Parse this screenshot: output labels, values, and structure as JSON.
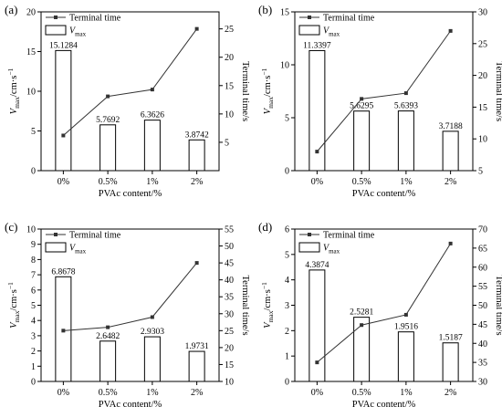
{
  "chart_data": [
    {
      "type": "bar",
      "panel_label": "(a)",
      "categories": [
        "0%",
        "0.5%",
        "1%",
        "2%"
      ],
      "xlabel": "PVAc content/%",
      "ylabel_left": {
        "main": "V",
        "sub": "max",
        "unit": "/cm·s",
        "sup": "−1"
      },
      "ylabel_right": "Terminal time/s",
      "left_ylim": [
        0,
        20
      ],
      "left_ticks": [
        0,
        5,
        10,
        15,
        20
      ],
      "right_ylim": [
        0,
        28
      ],
      "right_ticks": [
        5,
        10,
        15,
        20,
        25
      ],
      "legend": {
        "line": "Terminal time",
        "bar_main": "V",
        "bar_sub": "max"
      },
      "series": [
        {
          "name": "Vmax",
          "kind": "bar",
          "values": [
            15.1284,
            5.7692,
            6.3626,
            3.8742
          ],
          "labels": [
            "15.1284",
            "5.7692",
            "6.3626",
            "3.8742"
          ]
        },
        {
          "name": "Terminal time",
          "kind": "line",
          "values": [
            6.2,
            13.1,
            14.3,
            25.0
          ]
        }
      ]
    },
    {
      "type": "bar",
      "panel_label": "(b)",
      "categories": [
        "0%",
        "0.5%",
        "1%",
        "2%"
      ],
      "xlabel": "PVAc content/%",
      "ylabel_left": {
        "main": "V",
        "sub": "max",
        "unit": "/cm·s",
        "sup": "−1"
      },
      "ylabel_right": "Terminal time/s",
      "left_ylim": [
        0,
        15
      ],
      "left_ticks": [
        0,
        5,
        10,
        15
      ],
      "right_ylim": [
        5,
        30
      ],
      "right_ticks": [
        5,
        10,
        15,
        20,
        25,
        30
      ],
      "legend": {
        "line": "Terminal time",
        "bar_main": "V",
        "bar_sub": "max"
      },
      "series": [
        {
          "name": "Vmax",
          "kind": "bar",
          "values": [
            11.3397,
            5.6295,
            5.6393,
            3.7188
          ],
          "labels": [
            "11.3397",
            "5.6295",
            "5.6393",
            "3.7188"
          ]
        },
        {
          "name": "Terminal time",
          "kind": "line",
          "values": [
            8.0,
            16.3,
            17.2,
            27.0
          ]
        }
      ]
    },
    {
      "type": "bar",
      "panel_label": "(c)",
      "categories": [
        "0%",
        "0.5%",
        "1%",
        "2%"
      ],
      "xlabel": "PVAc content/%",
      "ylabel_left": {
        "main": "V",
        "sub": "max",
        "unit": "/cm·s",
        "sup": "−1"
      },
      "ylabel_right": "Terminal time/s",
      "left_ylim": [
        0,
        10
      ],
      "left_ticks": [
        0,
        1,
        2,
        3,
        4,
        5,
        6,
        7,
        8,
        9,
        10
      ],
      "right_ylim": [
        10,
        55
      ],
      "right_ticks": [
        10,
        15,
        20,
        25,
        30,
        35,
        40,
        45,
        50,
        55
      ],
      "legend": {
        "line": "Terminal time",
        "bar_main": "V",
        "bar_sub": "max"
      },
      "series": [
        {
          "name": "Vmax",
          "kind": "bar",
          "values": [
            6.8678,
            2.6482,
            2.9303,
            1.9731
          ],
          "labels": [
            "6.8678",
            "2.6482",
            "2.9303",
            "1.9731"
          ]
        },
        {
          "name": "Terminal time",
          "kind": "line",
          "values": [
            25.0,
            26.0,
            29.0,
            45.0
          ]
        }
      ]
    },
    {
      "type": "bar",
      "panel_label": "(d)",
      "categories": [
        "0%",
        "0.5%",
        "1%",
        "2%"
      ],
      "xlabel": "PVAc content/%",
      "ylabel_left": {
        "main": "V",
        "sub": "max",
        "unit": "/cm·s",
        "sup": "−1"
      },
      "ylabel_right": "Terminal time/s",
      "left_ylim": [
        0,
        6
      ],
      "left_ticks": [
        0,
        1,
        2,
        3,
        4,
        5,
        6
      ],
      "right_ylim": [
        30,
        70
      ],
      "right_ticks": [
        30,
        35,
        40,
        45,
        50,
        55,
        60,
        65,
        70
      ],
      "legend": {
        "line": "Terminal time",
        "bar_main": "V",
        "bar_sub": "max"
      },
      "series": [
        {
          "name": "Vmax",
          "kind": "bar",
          "values": [
            4.3874,
            2.5281,
            1.9516,
            1.5187
          ],
          "labels": [
            "4.3874",
            "2.5281",
            "1.9516",
            "1.5187"
          ]
        },
        {
          "name": "Terminal time",
          "kind": "line",
          "values": [
            35.0,
            44.8,
            47.5,
            66.2
          ]
        }
      ]
    }
  ]
}
